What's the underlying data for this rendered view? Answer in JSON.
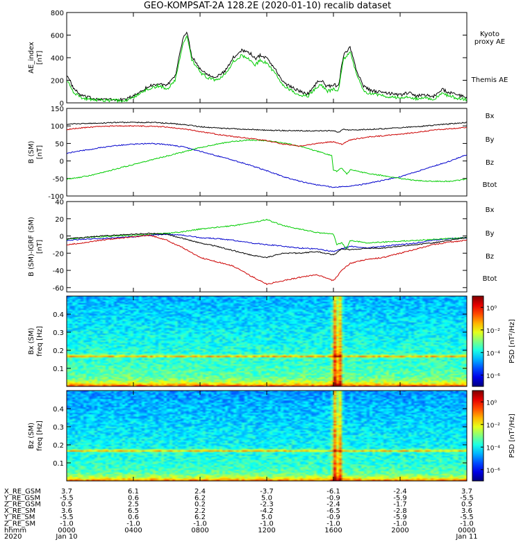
{
  "title": "GEO-KOMPSAT-2A 128.2E (2020-01-10) recalib dataset",
  "x_axis": {
    "ticks": [
      "0000",
      "0400",
      "0800",
      "1200",
      "1600",
      "2000",
      "0000"
    ],
    "tick_hours": [
      0,
      4,
      8,
      12,
      16,
      20,
      24
    ],
    "date_left": "Jan 10",
    "date_right": "Jan 11",
    "year": "2020",
    "hhmm_label": "hhmm",
    "range_hours": [
      0,
      24
    ]
  },
  "ephemeris": {
    "rows": [
      {
        "label": "X_RE_GSM",
        "values": [
          "3.7",
          "6.1",
          "2.4",
          "-3.7",
          "-6.1",
          "-2.4",
          "3.7"
        ]
      },
      {
        "label": "Y_RE_GSM",
        "values": [
          "-5.5",
          "0.6",
          "6.2",
          "5.0",
          "-0.9",
          "-5.9",
          "-5.5"
        ]
      },
      {
        "label": "Z_RE_GSM",
        "values": [
          "0.5",
          "2.5",
          "0.2",
          "-2.3",
          "-2.4",
          "-1.7",
          "0.5"
        ]
      },
      {
        "label": "X_RE_SM",
        "values": [
          "3.6",
          "6.5",
          "2.2",
          "-4.2",
          "-6.5",
          "-2.8",
          "3.6"
        ]
      },
      {
        "label": "Y_RE_SM",
        "values": [
          "-5.5",
          "0.6",
          "6.2",
          "5.0",
          "-0.9",
          "-5.9",
          "-5.5"
        ]
      },
      {
        "label": "Z_RE_SM",
        "values": [
          "-1.0",
          "-1.0",
          "-1.0",
          "-1.0",
          "-1.0",
          "-1.0",
          "-1.0"
        ]
      }
    ]
  },
  "chart_data": [
    {
      "type": "line",
      "panel": "ae",
      "ylabel": "AE_index",
      "yunit": "[nT]",
      "ylim": [
        0,
        800
      ],
      "yticks": [
        "0",
        "200",
        "400",
        "600",
        "800"
      ],
      "ytick_values": [
        0,
        200,
        400,
        600,
        800
      ],
      "series": [
        {
          "name": "Themis AE",
          "color": "#000000",
          "x": [
            0,
            0.4,
            0.8,
            1.2,
            1.6,
            2,
            2.5,
            3,
            3.5,
            4,
            4.5,
            5,
            5.5,
            6,
            6.5,
            7,
            7.2,
            7.5,
            8,
            8.5,
            9,
            9.5,
            10,
            10.5,
            11,
            11.3,
            11.6,
            12,
            12.5,
            13,
            13.5,
            14,
            14.5,
            15,
            15.3,
            15.6,
            16,
            16.3,
            16.6,
            17,
            17.4,
            17.8,
            18.2,
            18.6,
            19,
            19.5,
            20,
            20.5,
            21,
            21.5,
            22,
            22.5,
            23,
            23.5,
            24
          ],
          "y": [
            250,
            130,
            70,
            50,
            40,
            35,
            30,
            25,
            30,
            60,
            110,
            150,
            170,
            150,
            230,
            590,
            630,
            420,
            300,
            250,
            230,
            280,
            400,
            470,
            440,
            390,
            420,
            400,
            300,
            180,
            140,
            100,
            80,
            180,
            200,
            140,
            160,
            150,
            420,
            490,
            280,
            150,
            110,
            100,
            90,
            80,
            70,
            90,
            60,
            70,
            55,
            120,
            90,
            65,
            50
          ]
        },
        {
          "name": "Kyoto proxy AE",
          "color": "#00cc00",
          "x": [
            0,
            0.4,
            0.8,
            1.2,
            1.6,
            2,
            2.5,
            3,
            3.5,
            4,
            4.5,
            5,
            5.5,
            6,
            6.5,
            7,
            7.2,
            7.5,
            8,
            8.5,
            9,
            9.5,
            10,
            10.5,
            11,
            11.3,
            11.6,
            12,
            12.5,
            13,
            13.5,
            14,
            14.5,
            15,
            15.3,
            15.6,
            16,
            16.3,
            16.6,
            17,
            17.4,
            17.8,
            18.2,
            18.6,
            19,
            19.5,
            20,
            20.5,
            21,
            21.5,
            22,
            22.5,
            23,
            23.5,
            24
          ],
          "y": [
            200,
            100,
            50,
            35,
            28,
            25,
            22,
            20,
            22,
            45,
            90,
            130,
            150,
            120,
            200,
            540,
            600,
            380,
            270,
            220,
            200,
            250,
            370,
            420,
            380,
            330,
            380,
            350,
            260,
            150,
            110,
            70,
            60,
            140,
            160,
            100,
            120,
            110,
            380,
            450,
            240,
            110,
            80,
            70,
            60,
            50,
            45,
            50,
            35,
            40,
            35,
            80,
            60,
            40,
            30
          ]
        }
      ],
      "legend": [
        {
          "text": "Kyoto",
          "color": "#00cc00"
        },
        {
          "text": "proxy AE",
          "color": "#00cc00"
        },
        {
          "text": "Themis AE",
          "color": "#000000"
        }
      ]
    },
    {
      "type": "line",
      "panel": "b_sm",
      "ylabel": "B (SM)",
      "yunit": "[nT]",
      "ylim": [
        -100,
        150
      ],
      "yticks": [
        "-100",
        "-50",
        "0",
        "50",
        "100",
        "150"
      ],
      "ytick_values": [
        -100,
        -50,
        0,
        50,
        100,
        150
      ],
      "series": [
        {
          "name": "Bx",
          "color": "#0000cc",
          "x": [
            0,
            1,
            2,
            3,
            4,
            5,
            6,
            7,
            8,
            9,
            10,
            11,
            12,
            13,
            14,
            15,
            16,
            17,
            18,
            19,
            20,
            21,
            22,
            23,
            24
          ],
          "y": [
            22,
            30,
            38,
            44,
            48,
            50,
            47,
            40,
            28,
            15,
            2,
            -12,
            -28,
            -45,
            -58,
            -68,
            -75,
            -72,
            -65,
            -55,
            -45,
            -30,
            -15,
            0,
            18
          ]
        },
        {
          "name": "By",
          "color": "#00cc00",
          "x": [
            0,
            1,
            2,
            3,
            4,
            5,
            6,
            7,
            8,
            9,
            10,
            11,
            12,
            13,
            14,
            15,
            15.9,
            16,
            16.2,
            16.5,
            16.8,
            17,
            18,
            19,
            20,
            21,
            22,
            23,
            24
          ],
          "y": [
            -52,
            -45,
            -35,
            -22,
            -10,
            2,
            14,
            26,
            38,
            48,
            56,
            60,
            58,
            52,
            42,
            28,
            15,
            -25,
            -30,
            -20,
            -38,
            -25,
            -35,
            -42,
            -50,
            -56,
            -58,
            -58,
            -52
          ]
        },
        {
          "name": "Bz",
          "color": "#cc0000",
          "x": [
            0,
            1,
            2,
            3,
            4,
            5,
            6,
            7,
            8,
            9,
            10,
            11,
            12,
            13,
            14,
            15,
            16,
            16.5,
            17,
            18,
            19,
            20,
            21,
            22,
            23,
            24
          ],
          "y": [
            90,
            95,
            98,
            100,
            100,
            99,
            97,
            92,
            84,
            76,
            70,
            64,
            58,
            48,
            42,
            50,
            55,
            48,
            60,
            68,
            72,
            76,
            82,
            88,
            92,
            95
          ]
        },
        {
          "name": "Btot",
          "color": "#000000",
          "x": [
            0,
            1,
            2,
            3,
            4,
            5,
            6,
            7,
            8,
            9,
            10,
            11,
            12,
            13,
            14,
            15,
            16,
            16.3,
            16.6,
            17,
            18,
            19,
            20,
            21,
            22,
            23,
            24
          ],
          "y": [
            105,
            107,
            108,
            110,
            110,
            110,
            108,
            104,
            98,
            94,
            92,
            90,
            88,
            87,
            86,
            86,
            87,
            82,
            90,
            88,
            90,
            92,
            95,
            98,
            102,
            106,
            110
          ]
        }
      ],
      "legend": [
        {
          "text": "Bx",
          "color": "#0000cc"
        },
        {
          "text": "By",
          "color": "#00cc00"
        },
        {
          "text": "Bz",
          "color": "#cc0000"
        },
        {
          "text": "Btot",
          "color": "#000000"
        }
      ]
    },
    {
      "type": "line",
      "panel": "b_minus_igrf",
      "ylabel": "B (SM)-IGRF (SM)",
      "yunit": "[nT]",
      "ylim": [
        -65,
        40
      ],
      "yticks": [
        "-60",
        "-40",
        "-20",
        "0",
        "20",
        "40"
      ],
      "ytick_values": [
        -60,
        -40,
        -20,
        0,
        20,
        40
      ],
      "series": [
        {
          "name": "Bx",
          "color": "#0000cc",
          "x": [
            0,
            1,
            2,
            3,
            4,
            5,
            6,
            7,
            8,
            9,
            10,
            11,
            12,
            13,
            14,
            15,
            16,
            16.5,
            17,
            18,
            19,
            20,
            21,
            22,
            23,
            24
          ],
          "y": [
            -5,
            -4,
            -3,
            -2,
            -1,
            1,
            2,
            1,
            -2,
            -3,
            -5,
            -8,
            -10,
            -12,
            -14,
            -15,
            -18,
            -15,
            -12,
            -14,
            -12,
            -10,
            -8,
            -5,
            -3,
            -2
          ]
        },
        {
          "name": "By",
          "color": "#00cc00",
          "x": [
            0,
            1,
            2,
            3,
            4,
            5,
            6,
            7,
            8,
            9,
            10,
            11,
            12,
            13,
            14,
            15,
            16,
            16.2,
            16.5,
            16.8,
            17,
            18,
            19,
            20,
            21,
            22,
            23,
            24
          ],
          "y": [
            -4,
            -2,
            -1,
            0,
            1,
            2,
            3,
            5,
            8,
            10,
            12,
            15,
            19,
            12,
            8,
            4,
            2,
            -10,
            -8,
            -15,
            -5,
            -8,
            -7,
            -6,
            -5,
            -4,
            -3,
            -2
          ]
        },
        {
          "name": "Bz",
          "color": "#cc0000",
          "x": [
            0,
            1,
            2,
            3,
            4,
            5,
            6,
            7,
            8,
            9,
            10,
            11,
            12,
            13,
            14,
            15,
            16,
            16.5,
            17,
            18,
            19,
            20,
            21,
            22,
            23,
            24
          ],
          "y": [
            -10,
            -8,
            -5,
            -3,
            -1,
            1,
            -5,
            -14,
            -25,
            -30,
            -35,
            -46,
            -56,
            -52,
            -48,
            -45,
            -52,
            -40,
            -32,
            -27,
            -25,
            -20,
            -15,
            -10,
            -7,
            -5
          ]
        },
        {
          "name": "Btot",
          "color": "#000000",
          "x": [
            0,
            1,
            2,
            3,
            4,
            5,
            6,
            7,
            8,
            9,
            10,
            11,
            12,
            13,
            14,
            15,
            16,
            16.5,
            17,
            18,
            19,
            20,
            21,
            22,
            23,
            24
          ],
          "y": [
            -3,
            -2,
            0,
            1,
            2,
            3,
            2,
            -3,
            -8,
            -12,
            -17,
            -22,
            -25,
            -20,
            -20,
            -18,
            -22,
            -15,
            -16,
            -14,
            -14,
            -12,
            -10,
            -8,
            -5,
            -2
          ]
        }
      ],
      "legend": [
        {
          "text": "Bx",
          "color": "#0000cc"
        },
        {
          "text": "By",
          "color": "#00cc00"
        },
        {
          "text": "Bz",
          "color": "#cc0000"
        },
        {
          "text": "Btot",
          "color": "#000000"
        }
      ]
    },
    {
      "type": "heatmap",
      "panel": "spec_bx",
      "ylabel": "Bx (SM)",
      "yunit": "freq [Hz]",
      "ylim": [
        0,
        0.5
      ],
      "yticks": [
        "0.1",
        "0.2",
        "0.3",
        "0.4"
      ],
      "ytick_values": [
        0.1,
        0.2,
        0.3,
        0.4
      ],
      "colorbar": {
        "label": "PSD [nT²/Hz]",
        "ticks": [
          "10⁰",
          "10⁻²",
          "10⁻⁴",
          "10⁻⁶"
        ],
        "tick_exponents": [
          0,
          -2,
          -4,
          -6
        ],
        "range_exponents": [
          -7,
          1
        ]
      },
      "features": {
        "line_freq_hz": 0.167,
        "event_hour": 16.1,
        "event2_hour": 16.4,
        "base_exponent": -3.2
      }
    },
    {
      "type": "heatmap",
      "panel": "spec_bz",
      "ylabel": "Bz (SM)",
      "yunit": "freq [Hz]",
      "ylim": [
        0,
        0.5
      ],
      "yticks": [
        "0.1",
        "0.2",
        "0.3",
        "0.4"
      ],
      "ytick_values": [
        0.1,
        0.2,
        0.3,
        0.4
      ],
      "colorbar": {
        "label": "PSD [nT²/Hz]",
        "ticks": [
          "10⁰",
          "10⁻²",
          "10⁻⁴",
          "10⁻⁶"
        ],
        "tick_exponents": [
          0,
          -2,
          -4,
          -6
        ],
        "range_exponents": [
          -7,
          1
        ]
      },
      "features": {
        "line_freq_hz": 0.167,
        "event_hour": 16.1,
        "event2_hour": 16.4,
        "base_exponent": -3.4
      }
    }
  ]
}
